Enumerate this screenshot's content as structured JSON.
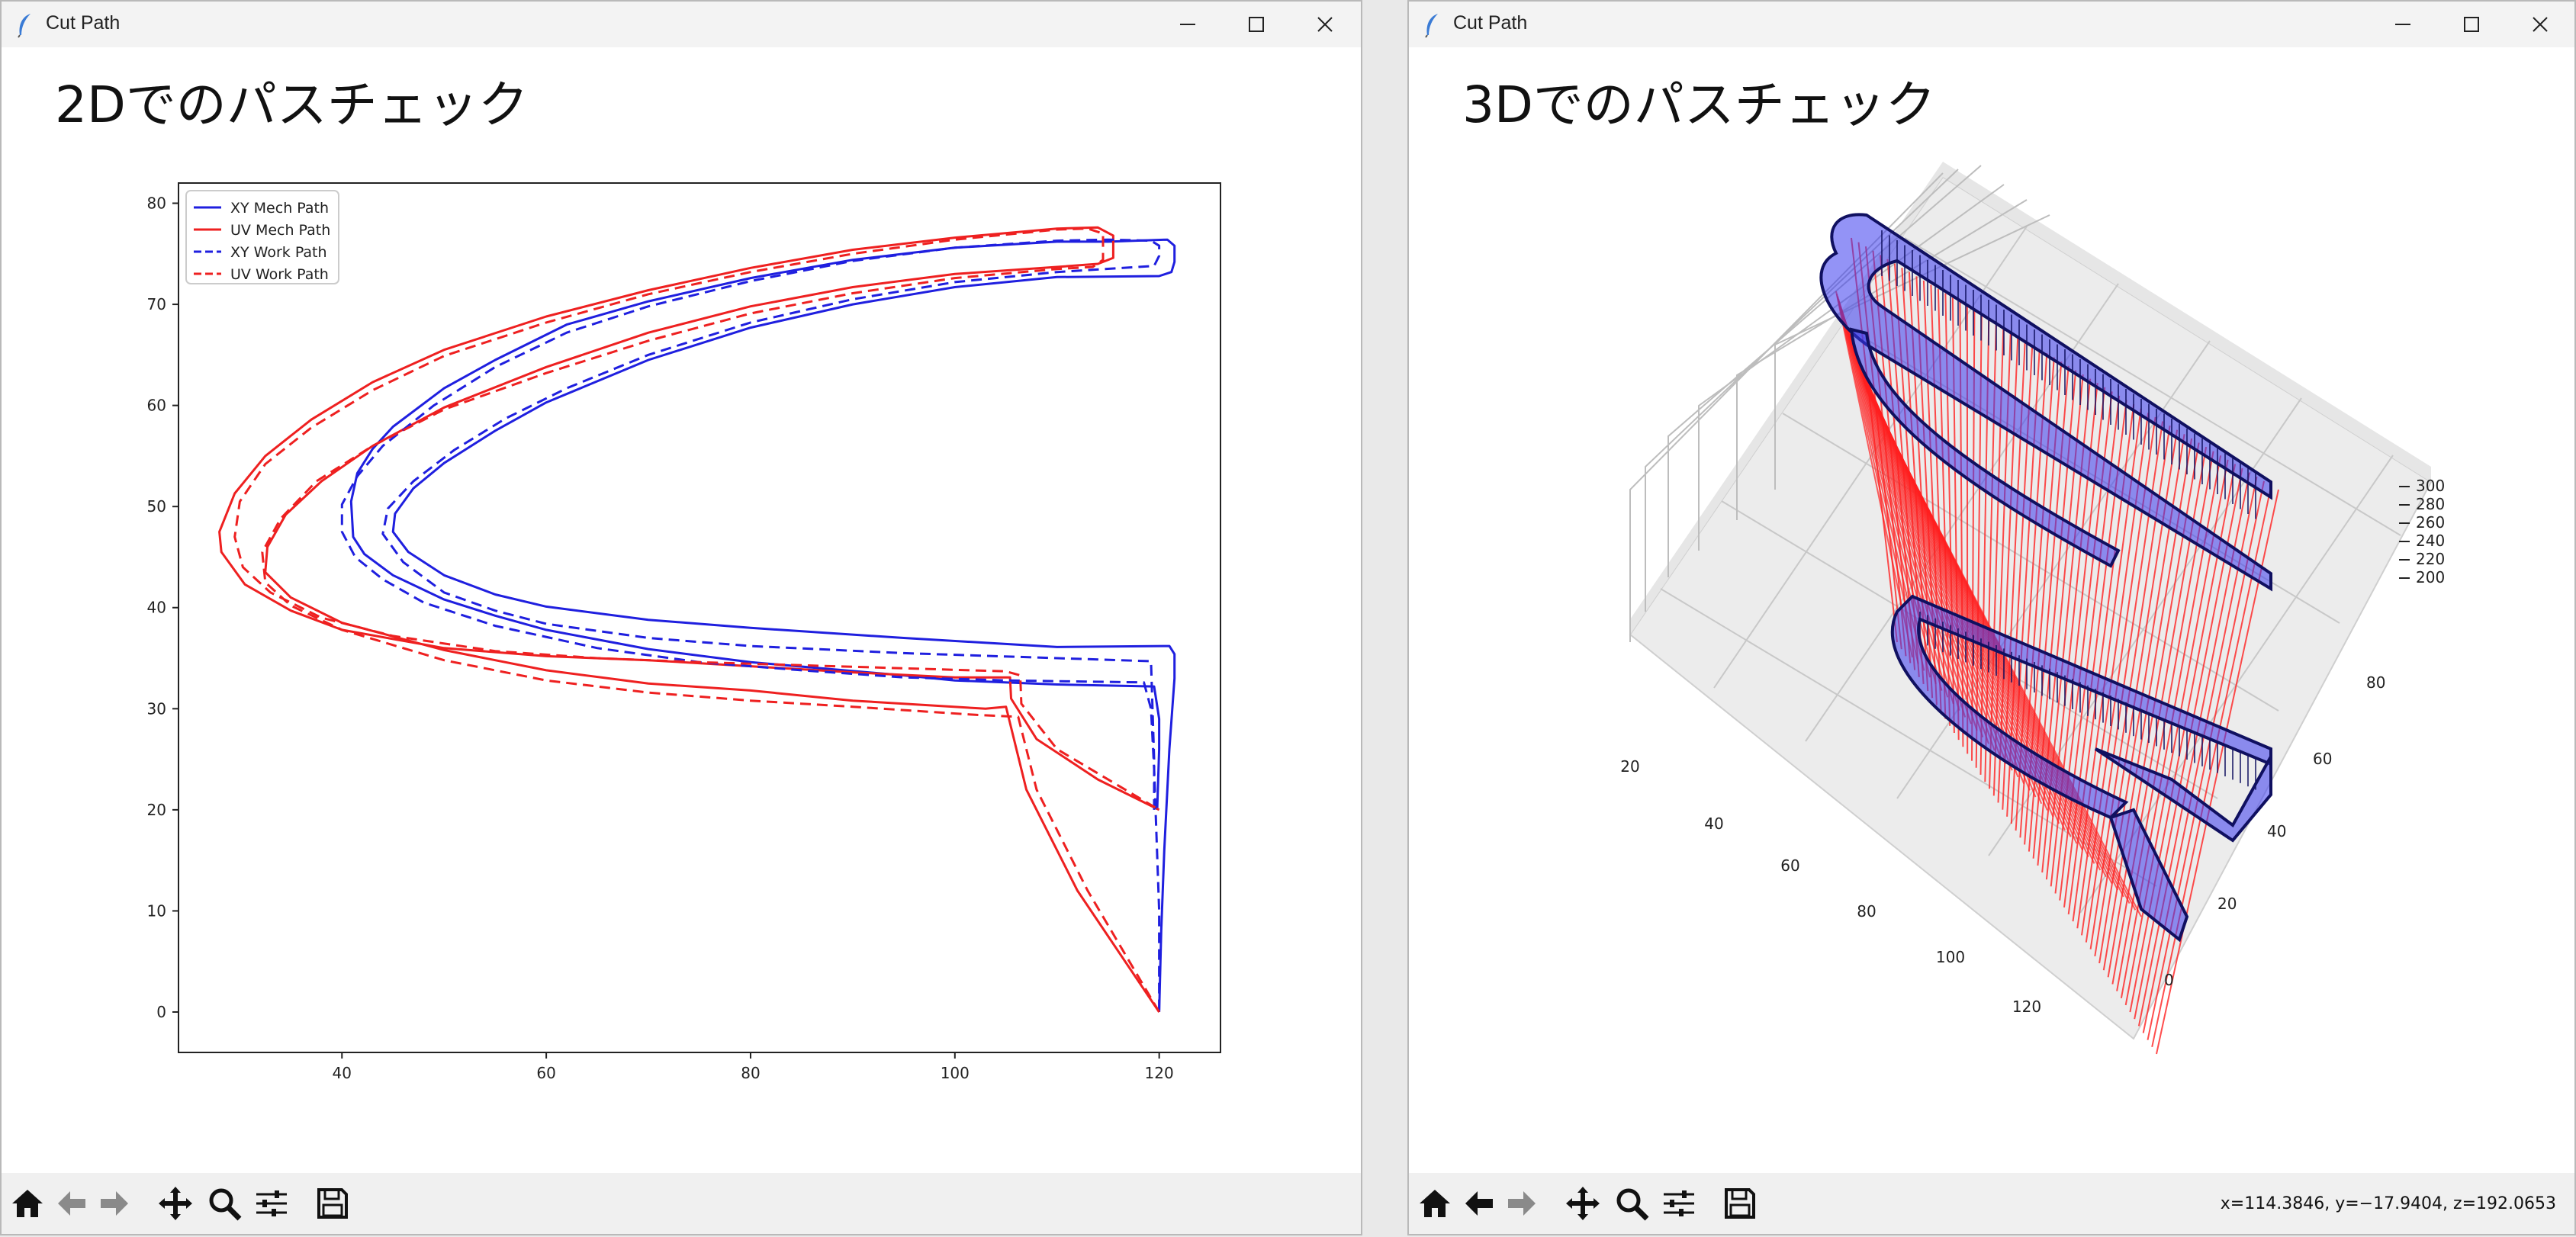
{
  "windows": [
    {
      "title": "Cut Path",
      "heading": "2Dでのパスチェック"
    },
    {
      "title": "Cut Path",
      "heading": "3Dでのパスチェック",
      "status": "x=114.3846, y=−17.9404, z=192.0653"
    }
  ],
  "toolbar": {
    "buttons": [
      "home-icon",
      "back-arrow-icon",
      "forward-arrow-icon",
      "pan-icon",
      "zoom-icon",
      "configure-subplots-icon",
      "save-icon"
    ]
  },
  "colors": {
    "xy": "#1f1fdf",
    "uv": "#ee2020",
    "dark_edge": "#101060"
  },
  "chart_data": [
    {
      "type": "line",
      "xlim": [
        24,
        126
      ],
      "ylim": [
        -4,
        82
      ],
      "x_ticks": [
        "40",
        "60",
        "80",
        "100",
        "120"
      ],
      "y_ticks": [
        "0",
        "10",
        "20",
        "30",
        "40",
        "50",
        "60",
        "70",
        "80"
      ],
      "legend_position": "top-left",
      "series": [
        {
          "name": "XY Mech Path",
          "style": "solid",
          "color": "#1f1fdf",
          "points": [
            [
              120,
              0
            ],
            [
              120.2,
              8
            ],
            [
              120.5,
              16
            ],
            [
              121,
              26
            ],
            [
              121.5,
              33
            ],
            [
              121.5,
              35.4
            ],
            [
              121,
              36.2
            ],
            [
              110,
              36.1
            ],
            [
              95,
              37
            ],
            [
              80,
              38
            ],
            [
              70,
              38.8
            ],
            [
              60,
              40.1
            ],
            [
              55,
              41.3
            ],
            [
              50,
              43.2
            ],
            [
              46.5,
              45.5
            ],
            [
              45,
              47.5
            ],
            [
              45.2,
              49.3
            ],
            [
              47,
              51.8
            ],
            [
              50,
              54.3
            ],
            [
              55,
              57.5
            ],
            [
              60,
              60.3
            ],
            [
              70,
              64.5
            ],
            [
              80,
              67.7
            ],
            [
              90,
              70
            ],
            [
              100,
              71.7
            ],
            [
              110,
              72.7
            ],
            [
              120,
              72.8
            ],
            [
              121.2,
              73.2
            ],
            [
              121.5,
              74.2
            ],
            [
              121.5,
              75.8
            ],
            [
              120.8,
              76.4
            ],
            [
              115,
              76.2
            ],
            [
              110,
              76.2
            ],
            [
              100,
              75.6
            ],
            [
              90,
              74.4
            ],
            [
              80,
              72.6
            ],
            [
              70,
              70.3
            ],
            [
              62,
              68
            ],
            [
              55,
              64.5
            ],
            [
              50,
              61.7
            ],
            [
              45,
              57.9
            ],
            [
              43,
              55.7
            ],
            [
              41.5,
              53.3
            ],
            [
              40.9,
              50.5
            ],
            [
              41.1,
              47
            ],
            [
              42.2,
              45.3
            ],
            [
              45,
              43.2
            ],
            [
              50,
              40.8
            ],
            [
              55,
              39.2
            ],
            [
              60,
              37.8
            ],
            [
              70,
              35.9
            ],
            [
              80,
              34.6
            ],
            [
              95,
              33.3
            ],
            [
              100,
              32.8
            ],
            [
              110,
              32.4
            ],
            [
              119.5,
              32.2
            ],
            [
              120,
              29
            ],
            [
              120,
              26
            ],
            [
              119.8,
              20
            ]
          ]
        },
        {
          "name": "UV Mech Path",
          "style": "solid",
          "color": "#ee2020",
          "points": [
            [
              120,
              0
            ],
            [
              112,
              12
            ],
            [
              107,
              22
            ],
            [
              105,
              30.2
            ],
            [
              103,
              30
            ],
            [
              90,
              30.8
            ],
            [
              80,
              31.8
            ],
            [
              70,
              32.5
            ],
            [
              60,
              33.8
            ],
            [
              50,
              35.8
            ],
            [
              40,
              38.5
            ],
            [
              35,
              41
            ],
            [
              32.5,
              43.5
            ],
            [
              32.7,
              46
            ],
            [
              34.5,
              49.2
            ],
            [
              38,
              52.5
            ],
            [
              43,
              56
            ],
            [
              50,
              59.8
            ],
            [
              60,
              63.8
            ],
            [
              70,
              67.2
            ],
            [
              80,
              69.8
            ],
            [
              90,
              71.7
            ],
            [
              100,
              73
            ],
            [
              110,
              73.7
            ],
            [
              114,
              74
            ],
            [
              115.5,
              74.6
            ],
            [
              115.5,
              76.8
            ],
            [
              114,
              77.6
            ],
            [
              110,
              77.5
            ],
            [
              100,
              76.6
            ],
            [
              90,
              75.4
            ],
            [
              80,
              73.6
            ],
            [
              70,
              71.4
            ],
            [
              60,
              68.8
            ],
            [
              50,
              65.5
            ],
            [
              43,
              62.3
            ],
            [
              37,
              58.6
            ],
            [
              32.5,
              55
            ],
            [
              29.5,
              51.3
            ],
            [
              28,
              47.5
            ],
            [
              28.2,
              45.5
            ],
            [
              30.5,
              42.3
            ],
            [
              35,
              39.7
            ],
            [
              40,
              37.8
            ],
            [
              50,
              36
            ],
            [
              60,
              35.2
            ],
            [
              70,
              34.8
            ],
            [
              80,
              34.2
            ],
            [
              90,
              33.6
            ],
            [
              100,
              33.1
            ],
            [
              105.4,
              33.1
            ],
            [
              105.5,
              31
            ],
            [
              108,
              27
            ],
            [
              114,
              23
            ],
            [
              120,
              20
            ]
          ]
        },
        {
          "name": "XY Work Path",
          "style": "dashed",
          "color": "#1f1fdf",
          "points": [
            [
              119.5,
              20
            ],
            [
              119.5,
              25
            ],
            [
              119.2,
              34.7
            ],
            [
              110,
              35
            ],
            [
              95,
              35.5
            ],
            [
              80,
              36.2
            ],
            [
              70,
              37
            ],
            [
              60,
              38.4
            ],
            [
              55,
              39.7
            ],
            [
              50,
              41.5
            ],
            [
              46,
              44.5
            ],
            [
              44,
              47.3
            ],
            [
              44.5,
              49.8
            ],
            [
              47,
              52.5
            ],
            [
              51,
              55.6
            ],
            [
              56,
              58.7
            ],
            [
              62,
              61.7
            ],
            [
              70,
              65
            ],
            [
              80,
              68.2
            ],
            [
              90,
              70.5
            ],
            [
              100,
              72.2
            ],
            [
              110,
              73.2
            ],
            [
              119.5,
              73.8
            ],
            [
              120,
              74.8
            ],
            [
              120,
              75.8
            ],
            [
              119.2,
              76.3
            ],
            [
              115,
              76.4
            ],
            [
              110,
              76.3
            ],
            [
              100,
              75.6
            ],
            [
              90,
              74.3
            ],
            [
              80,
              72.3
            ],
            [
              70,
              69.8
            ],
            [
              62,
              67.2
            ],
            [
              55,
              63.8
            ],
            [
              49,
              60
            ],
            [
              44,
              56
            ],
            [
              41.5,
              53
            ],
            [
              40,
              50.2
            ],
            [
              40,
              47.5
            ],
            [
              41.3,
              45
            ],
            [
              44,
              42.8
            ],
            [
              48,
              40.5
            ],
            [
              55,
              38.2
            ],
            [
              65,
              36
            ],
            [
              75,
              34.6
            ],
            [
              85,
              33.8
            ],
            [
              95,
              33.1
            ],
            [
              105,
              32.8
            ],
            [
              118.5,
              32.6
            ],
            [
              119.2,
              30
            ],
            [
              119.5,
              24
            ],
            [
              120,
              10
            ],
            [
              120,
              0
            ]
          ]
        },
        {
          "name": "UV Work Path",
          "style": "dashed",
          "color": "#ee2020",
          "points": [
            [
              120,
              0
            ],
            [
              113,
              12
            ],
            [
              108,
              22
            ],
            [
              106.2,
              29.2
            ],
            [
              102,
              29.4
            ],
            [
              90,
              30.2
            ],
            [
              80,
              30.8
            ],
            [
              70,
              31.6
            ],
            [
              60,
              32.8
            ],
            [
              50,
              34.8
            ],
            [
              40,
              37.8
            ],
            [
              35,
              40.2
            ],
            [
              32.5,
              42.5
            ],
            [
              32.2,
              45.5
            ],
            [
              34,
              48.8
            ],
            [
              37.5,
              52.5
            ],
            [
              43,
              56
            ],
            [
              50,
              59.6
            ],
            [
              60,
              63.2
            ],
            [
              70,
              66.4
            ],
            [
              80,
              69.1
            ],
            [
              90,
              71.1
            ],
            [
              100,
              72.6
            ],
            [
              110,
              73.5
            ],
            [
              113.5,
              73.7
            ],
            [
              114.5,
              74.4
            ],
            [
              114.5,
              77
            ],
            [
              113,
              77.5
            ],
            [
              110,
              77.4
            ],
            [
              100,
              76.4
            ],
            [
              90,
              75
            ],
            [
              80,
              73.2
            ],
            [
              70,
              71
            ],
            [
              60,
              68.2
            ],
            [
              50,
              64.9
            ],
            [
              43,
              61.5
            ],
            [
              37,
              57.8
            ],
            [
              32.5,
              54.2
            ],
            [
              30,
              50.5
            ],
            [
              29.5,
              47
            ],
            [
              30.3,
              44
            ],
            [
              33,
              41.5
            ],
            [
              38,
              39
            ],
            [
              45,
              37.2
            ],
            [
              55,
              35.7
            ],
            [
              65,
              35
            ],
            [
              75,
              34.6
            ],
            [
              85,
              34.3
            ],
            [
              95,
              34
            ],
            [
              105,
              33.7
            ],
            [
              106.4,
              33.3
            ],
            [
              106.5,
              30.5
            ],
            [
              110,
              26
            ],
            [
              115,
              23
            ],
            [
              120,
              20
            ]
          ]
        }
      ]
    },
    {
      "type": "line",
      "projection": "3d",
      "x_ticks": [
        "20",
        "40",
        "60",
        "80",
        "100",
        "120"
      ],
      "y_ticks": [
        "0",
        "20",
        "40",
        "60",
        "80"
      ],
      "z_ticks": [
        "200",
        "220",
        "240",
        "260",
        "280",
        "300"
      ]
    }
  ]
}
